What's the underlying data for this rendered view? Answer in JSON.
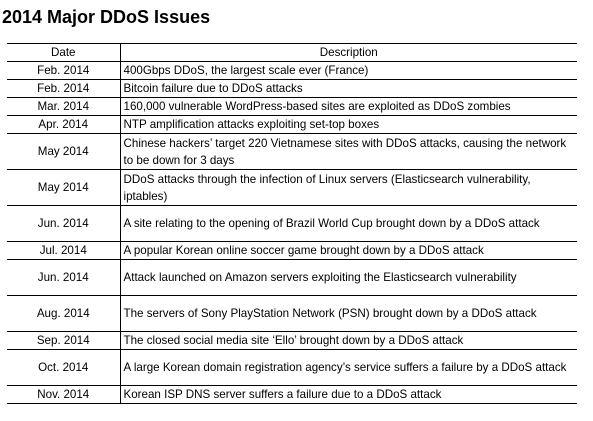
{
  "title": "2014 Major DDoS Issues",
  "table": {
    "headers": {
      "date": "Date",
      "description": "Description"
    },
    "rows": [
      {
        "date": "Feb. 2014",
        "description": "400Gbps DDoS, the largest scale ever (France)"
      },
      {
        "date": "Feb. 2014",
        "description": "Bitcoin failure due to DDoS attacks"
      },
      {
        "date": "Mar. 2014",
        "description": "160,000 vulnerable WordPress-based sites are exploited as DDoS zombies"
      },
      {
        "date": "Apr. 2014",
        "description": "NTP amplification attacks exploiting set-top boxes"
      },
      {
        "date": "May 2014",
        "description": "Chinese hackers’ target 220 Vietnamese sites with DDoS attacks, causing the network to be down for 3 days"
      },
      {
        "date": "May 2014",
        "description": "DDoS attacks through the infection of Linux servers (Elasticsearch vulnerability, iptables)"
      },
      {
        "date": "Jun. 2014",
        "description": "A site relating to the opening of Brazil World Cup brought down by a DDoS attack"
      },
      {
        "date": "Jul. 2014",
        "description": "A popular Korean online soccer game brought down by a DDoS attack"
      },
      {
        "date": "Jun. 2014",
        "description": "Attack launched on Amazon servers exploiting the Elasticsearch vulnerability"
      },
      {
        "date": "Aug. 2014",
        "description": "The servers of Sony PlayStation Network (PSN) brought down by a DDoS attack"
      },
      {
        "date": "Sep. 2014",
        "description": "The closed social media site ‘Ello’ brought down by a DDoS attack"
      },
      {
        "date": "Oct. 2014",
        "description": "A large Korean domain registration agency’s service suffers a failure by a DDoS attack"
      },
      {
        "date": "Nov. 2014",
        "description": "Korean ISP DNS server suffers a failure due to a DDoS attack"
      }
    ]
  }
}
